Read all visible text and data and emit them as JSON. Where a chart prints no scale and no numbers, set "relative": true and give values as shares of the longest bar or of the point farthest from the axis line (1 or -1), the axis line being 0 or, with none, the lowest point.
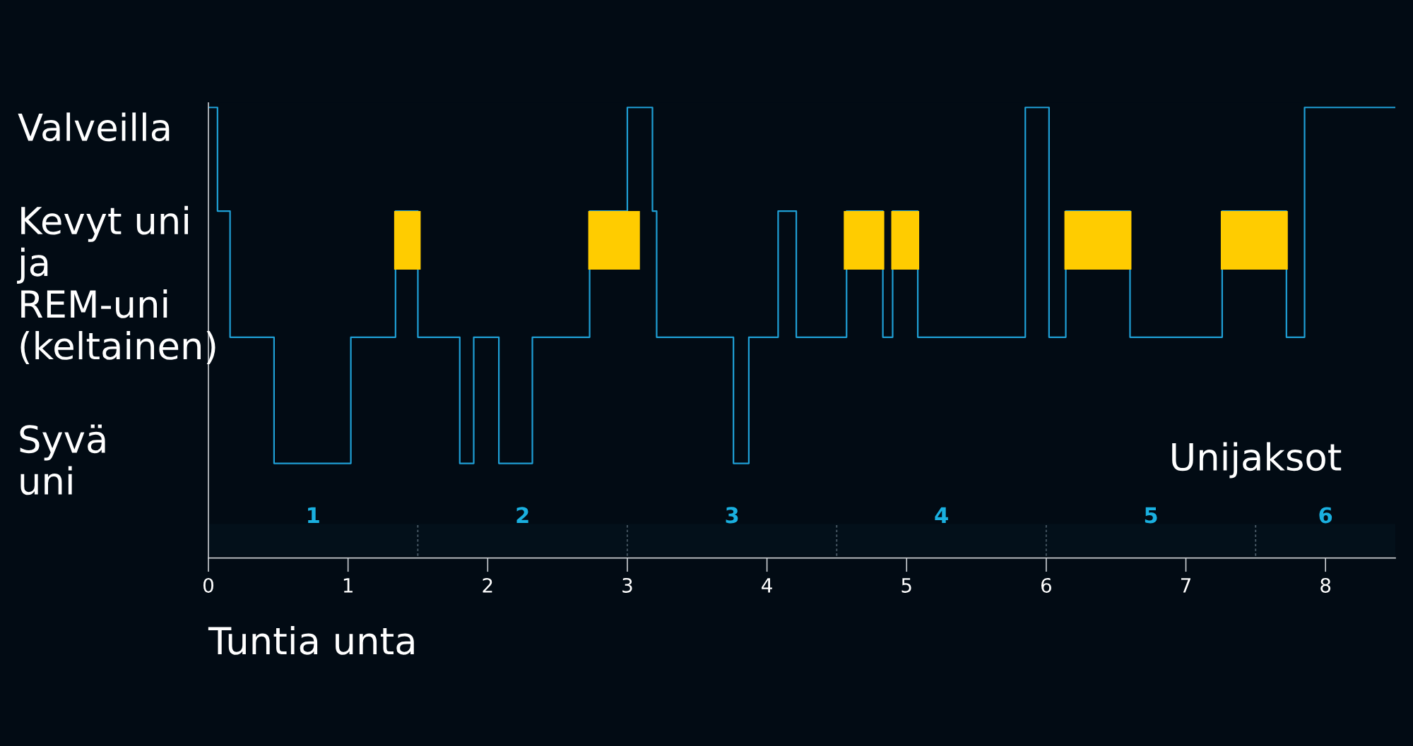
{
  "chart_data": {
    "type": "step",
    "xlabel": "Tuntia unta",
    "relative": true,
    "xlim": [
      0,
      8.5
    ],
    "xticks": [
      0,
      1,
      2,
      3,
      4,
      5,
      6,
      7,
      8
    ],
    "grid": false,
    "series": [
      {
        "color": "#1f9fd5",
        "x": [
          0,
          0.065,
          0.155,
          0.47,
          1.02,
          1.34,
          1.5,
          1.8,
          1.9,
          2.08,
          2.32,
          2.73,
          3.0,
          3.18,
          3.21,
          3.76,
          3.87,
          4.08,
          4.21,
          4.57,
          4.83,
          4.9,
          5.08,
          5.85,
          6.02,
          6.14,
          6.6,
          7.26,
          7.72,
          7.85,
          8.5
        ],
        "values": [
          1,
          0.77,
          0.49,
          0.21,
          0.49,
          0.77,
          0.49,
          0.21,
          0.49,
          0.21,
          0.49,
          0.77,
          1,
          0.77,
          0.49,
          0.21,
          0.49,
          0.77,
          0.49,
          0.77,
          0.49,
          0.77,
          0.49,
          1,
          0.49,
          0.77,
          0.49,
          0.77,
          0.49,
          1,
          1
        ]
      }
    ],
    "bands": [
      {
        "axis": "x",
        "from": 1.33,
        "to": 1.52,
        "color": "#ffcc00"
      },
      {
        "axis": "x",
        "from": 2.72,
        "to": 3.09,
        "color": "#ffcc00"
      },
      {
        "axis": "x",
        "from": 4.55,
        "to": 4.84,
        "color": "#ffcc00"
      },
      {
        "axis": "x",
        "from": 4.89,
        "to": 5.09,
        "color": "#ffcc00"
      },
      {
        "axis": "x",
        "from": 6.13,
        "to": 6.61,
        "color": "#ffcc00"
      },
      {
        "axis": "x",
        "from": 7.25,
        "to": 7.73,
        "color": "#ffcc00"
      },
      {
        "axis": "x",
        "from": 0,
        "to": 1.5,
        "label": "1",
        "color": "#03101a"
      },
      {
        "axis": "x",
        "from": 1.5,
        "to": 3.0,
        "label": "2",
        "color": "#03101a"
      },
      {
        "axis": "x",
        "from": 3.0,
        "to": 4.5,
        "label": "3",
        "color": "#03101a"
      },
      {
        "axis": "x",
        "from": 4.5,
        "to": 6.0,
        "label": "4",
        "color": "#03101a"
      },
      {
        "axis": "x",
        "from": 6.0,
        "to": 7.5,
        "label": "5",
        "color": "#03101a"
      },
      {
        "axis": "x",
        "from": 7.5,
        "to": 8.5,
        "label": "6",
        "color": "#03101a"
      }
    ],
    "annotations": [
      "Valveilla",
      "Kevyt uni\nja\nREM-uni\n(keltainen)",
      "Syvä\nuni",
      "Unijaksot"
    ]
  }
}
